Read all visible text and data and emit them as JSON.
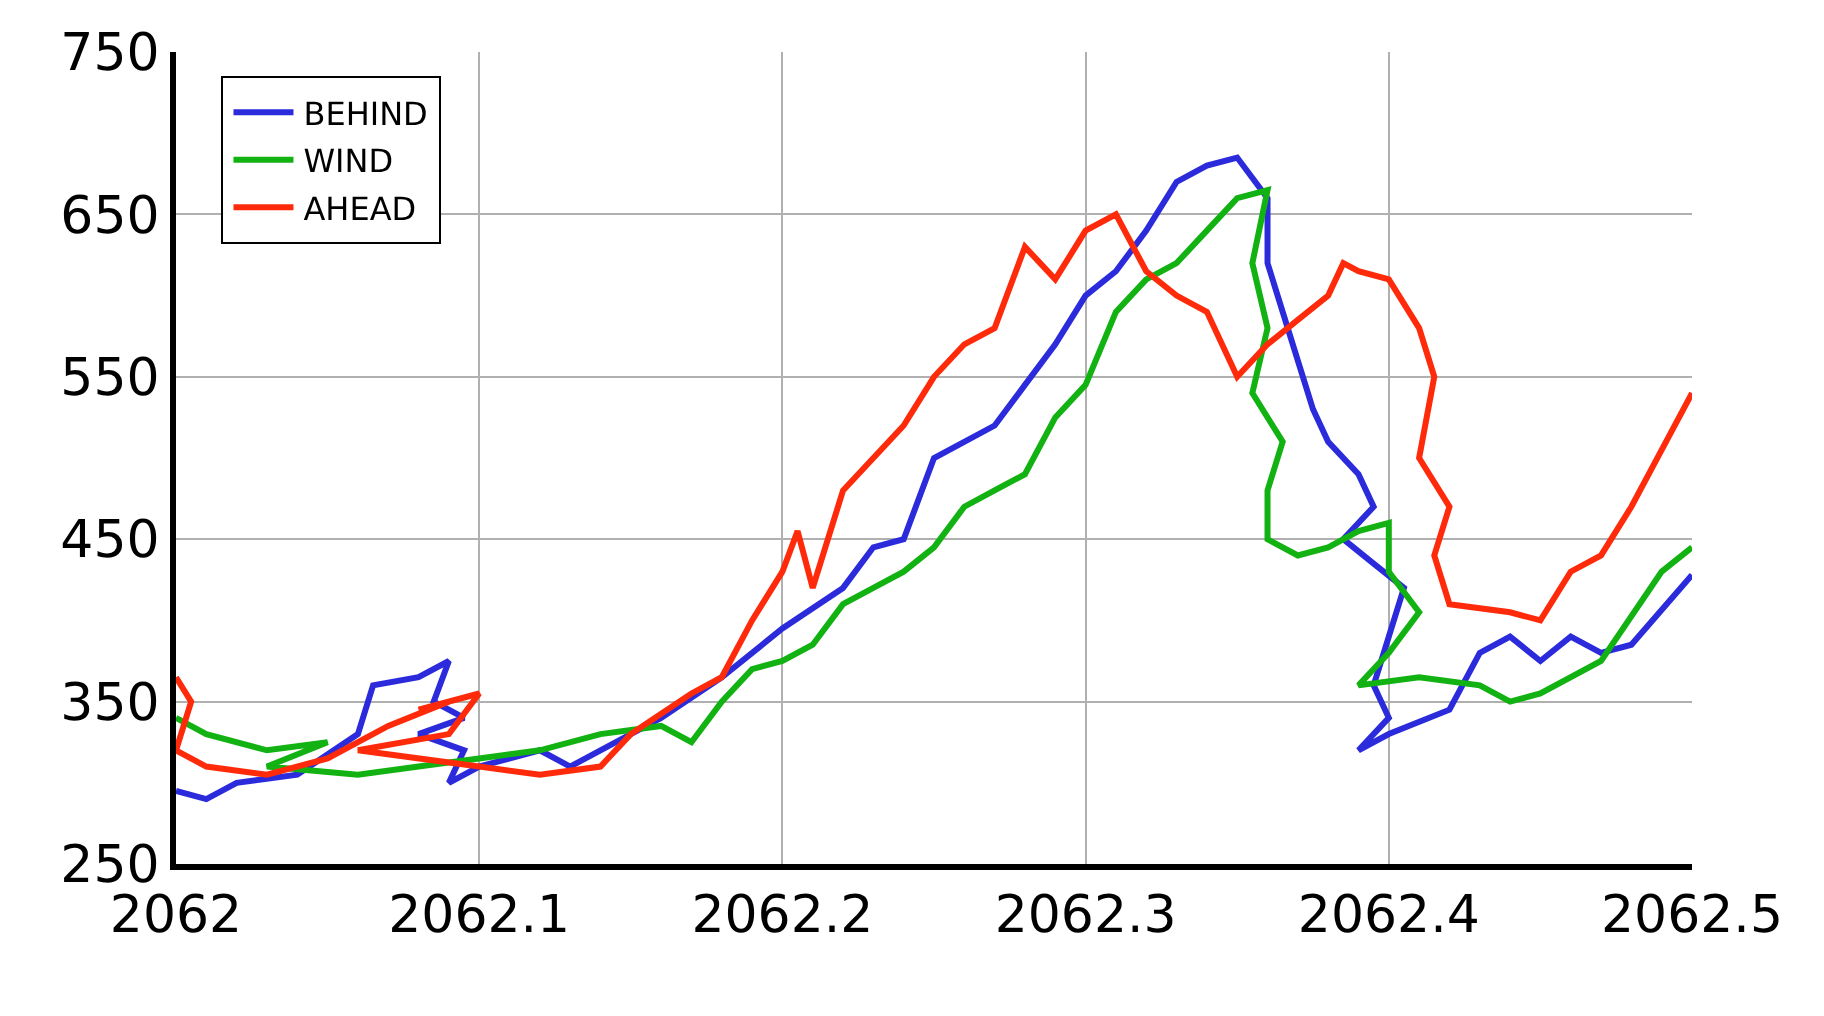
{
  "chart_data": {
    "type": "line",
    "xlim": [
      2062,
      2062.5
    ],
    "xticks": [
      2062,
      2062.1,
      2062.2,
      2062.3,
      2062.4,
      2062.5
    ],
    "ylim": [
      250,
      750
    ],
    "yticks": [
      250,
      350,
      450,
      550,
      650,
      750
    ],
    "grid": true,
    "legend": "top left",
    "marker": "none",
    "line_style": "solid",
    "series": [
      {
        "name": "BEHIND",
        "color": "#2b2bdc",
        "x": [
          2062.0,
          2062.01,
          2062.02,
          2062.04,
          2062.06,
          2062.065,
          2062.08,
          2062.09,
          2062.085,
          2062.095,
          2062.08,
          2062.095,
          2062.09,
          2062.1,
          2062.12,
          2062.13,
          2062.15,
          2062.16,
          2062.18,
          2062.2,
          2062.22,
          2062.23,
          2062.24,
          2062.25,
          2062.27,
          2062.28,
          2062.29,
          2062.3,
          2062.31,
          2062.32,
          2062.33,
          2062.34,
          2062.35,
          2062.36,
          2062.36,
          2062.365,
          2062.37,
          2062.375,
          2062.38,
          2062.39,
          2062.395,
          2062.385,
          2062.395,
          2062.405,
          2062.4,
          2062.395,
          2062.4,
          2062.39,
          2062.4,
          2062.42,
          2062.43,
          2062.44,
          2062.45,
          2062.46,
          2062.47,
          2062.48,
          2062.5
        ],
        "values": [
          295,
          290,
          300,
          305,
          330,
          360,
          365,
          375,
          350,
          340,
          330,
          320,
          300,
          310,
          320,
          310,
          330,
          340,
          365,
          395,
          420,
          445,
          450,
          500,
          520,
          545,
          570,
          600,
          615,
          640,
          670,
          680,
          685,
          660,
          620,
          590,
          560,
          530,
          510,
          490,
          470,
          450,
          435,
          420,
          390,
          360,
          340,
          320,
          330,
          345,
          380,
          390,
          375,
          390,
          380,
          385,
          428
        ]
      },
      {
        "name": "WIND",
        "color": "#12b212",
        "x": [
          2062.0,
          2062.01,
          2062.03,
          2062.05,
          2062.03,
          2062.06,
          2062.08,
          2062.1,
          2062.12,
          2062.14,
          2062.16,
          2062.17,
          2062.18,
          2062.19,
          2062.2,
          2062.21,
          2062.22,
          2062.23,
          2062.24,
          2062.25,
          2062.26,
          2062.27,
          2062.28,
          2062.29,
          2062.3,
          2062.31,
          2062.32,
          2062.33,
          2062.34,
          2062.35,
          2062.36,
          2062.355,
          2062.36,
          2062.355,
          2062.365,
          2062.36,
          2062.36,
          2062.37,
          2062.38,
          2062.39,
          2062.4,
          2062.4,
          2062.41,
          2062.4,
          2062.39,
          2062.41,
          2062.43,
          2062.44,
          2062.45,
          2062.47,
          2062.49,
          2062.5
        ],
        "values": [
          340,
          330,
          320,
          325,
          310,
          305,
          310,
          315,
          320,
          330,
          335,
          325,
          350,
          370,
          375,
          385,
          410,
          420,
          430,
          445,
          470,
          480,
          490,
          525,
          545,
          590,
          610,
          620,
          640,
          660,
          665,
          620,
          580,
          540,
          510,
          480,
          450,
          440,
          445,
          455,
          460,
          430,
          405,
          380,
          360,
          365,
          360,
          350,
          355,
          375,
          430,
          445
        ]
      },
      {
        "name": "AHEAD",
        "color": "#ff2a0a",
        "x": [
          2062.0,
          2062.005,
          2062.0,
          2062.01,
          2062.03,
          2062.05,
          2062.07,
          2062.09,
          2062.08,
          2062.1,
          2062.09,
          2062.06,
          2062.1,
          2062.12,
          2062.14,
          2062.15,
          2062.17,
          2062.18,
          2062.19,
          2062.2,
          2062.205,
          2062.21,
          2062.22,
          2062.24,
          2062.25,
          2062.26,
          2062.27,
          2062.28,
          2062.29,
          2062.3,
          2062.31,
          2062.32,
          2062.33,
          2062.34,
          2062.35,
          2062.36,
          2062.37,
          2062.38,
          2062.385,
          2062.39,
          2062.4,
          2062.41,
          2062.415,
          2062.41,
          2062.42,
          2062.415,
          2062.42,
          2062.44,
          2062.45,
          2062.46,
          2062.47,
          2062.48,
          2062.49,
          2062.5
        ],
        "values": [
          365,
          350,
          320,
          310,
          305,
          315,
          335,
          350,
          345,
          355,
          330,
          320,
          310,
          305,
          310,
          330,
          355,
          365,
          400,
          430,
          455,
          420,
          480,
          520,
          550,
          570,
          580,
          630,
          610,
          640,
          650,
          615,
          600,
          590,
          550,
          570,
          585,
          600,
          620,
          615,
          610,
          580,
          550,
          500,
          470,
          440,
          410,
          405,
          400,
          430,
          440,
          470,
          505,
          540
        ]
      }
    ]
  }
}
